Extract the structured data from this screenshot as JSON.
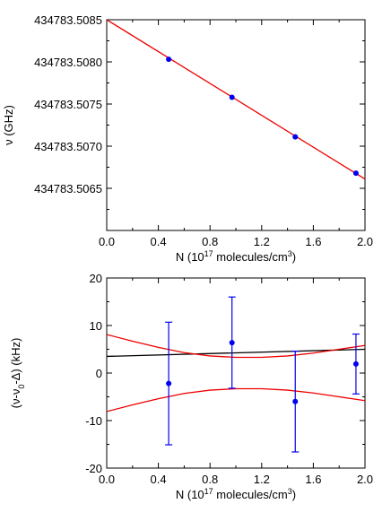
{
  "chart_data": [
    {
      "type": "scatter",
      "xlabel": "N (10^17 molecules/cm^3)",
      "xlabel_parts": {
        "pre": "N (10",
        "sup1": "17",
        "mid": " molecules/cm",
        "sup2": "3",
        "post": ")"
      },
      "ylabel": "ν (GHz)",
      "xlim": [
        0.0,
        2.0
      ],
      "ylim": [
        434783.506,
        434783.5085
      ],
      "x_ticks": [
        "0.0",
        "0.4",
        "0.8",
        "1.2",
        "1.6",
        "2.0"
      ],
      "y_ticks": [
        "434783.5065",
        "434783.5070",
        "434783.5075",
        "434783.5080",
        "434783.5085"
      ],
      "series": [
        {
          "kind": "points",
          "color": "#0000ee",
          "x": [
            0.48,
            0.97,
            1.46,
            1.93
          ],
          "y": [
            434783.50803,
            434783.50758,
            434783.50711,
            434783.50668
          ]
        },
        {
          "kind": "fit-line",
          "color": "#ee0000",
          "x": [
            0.0,
            2.0
          ],
          "y": [
            434783.5085,
            434783.50661
          ]
        }
      ]
    },
    {
      "type": "scatter",
      "xlabel": "N (10^17 molecules/cm^3)",
      "xlabel_parts": {
        "pre": "N (10",
        "sup1": "17",
        "mid": " molecules/cm",
        "sup2": "3",
        "post": ")"
      },
      "ylabel": "(ν-ν0-Δ) (kHz)",
      "ylabel_parts": {
        "pre": "(ν-ν",
        "sub": "0",
        "post": "-Δ) (kHz)"
      },
      "xlim": [
        0.0,
        2.0
      ],
      "ylim": [
        -20,
        20
      ],
      "x_ticks": [
        "0.0",
        "0.4",
        "0.8",
        "1.2",
        "1.6",
        "2.0"
      ],
      "y_ticks": [
        "-20",
        "-10",
        "0",
        "10",
        "20"
      ],
      "series": [
        {
          "kind": "points-with-errorbars",
          "color": "#0000ee",
          "x": [
            0.48,
            0.97,
            1.46,
            1.93
          ],
          "y": [
            -2.2,
            6.4,
            -6.0,
            1.9
          ],
          "yerr": [
            12.9,
            9.6,
            10.6,
            6.3
          ]
        },
        {
          "kind": "fit-line",
          "color": "#000000",
          "x": [
            0.0,
            2.0
          ],
          "y": [
            3.5,
            5.0
          ]
        },
        {
          "kind": "confidence-band-upper",
          "color": "#ee0000",
          "x": [
            0.0,
            0.2,
            0.4,
            0.6,
            0.8,
            1.0,
            1.2,
            1.4,
            1.6,
            1.8,
            2.0
          ],
          "y": [
            8.1,
            6.7,
            5.4,
            4.3,
            3.6,
            3.3,
            3.3,
            3.6,
            4.2,
            5.0,
            5.8
          ]
        },
        {
          "kind": "confidence-band-lower",
          "color": "#ee0000",
          "x": [
            0.0,
            0.2,
            0.4,
            0.6,
            0.8,
            1.0,
            1.2,
            1.4,
            1.6,
            1.8,
            2.0
          ],
          "y": [
            -8.1,
            -6.7,
            -5.4,
            -4.3,
            -3.6,
            -3.3,
            -3.3,
            -3.6,
            -4.2,
            -5.0,
            -5.8
          ]
        }
      ]
    }
  ]
}
